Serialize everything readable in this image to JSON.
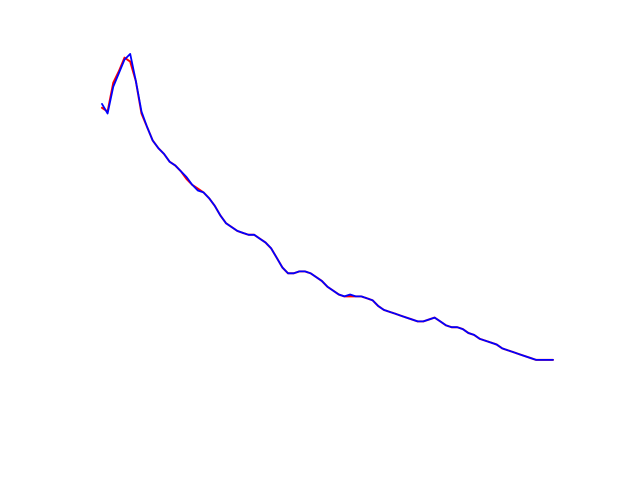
{
  "chart_data": {
    "type": "line",
    "title": "",
    "xlabel": "",
    "ylabel": "",
    "axes_visible": false,
    "grid": false,
    "legend": "none",
    "xlim": [
      0,
      80
    ],
    "ylim": [
      -1.72,
      0.28
    ],
    "x": [
      0,
      1,
      2,
      3,
      4,
      5,
      6,
      7,
      8,
      9,
      10,
      11,
      12,
      13,
      14,
      15,
      16,
      17,
      18,
      19,
      20,
      21,
      22,
      23,
      24,
      25,
      26,
      27,
      28,
      29,
      30,
      31,
      32,
      33,
      34,
      35,
      36,
      37,
      38,
      39,
      40,
      41,
      42,
      43,
      44,
      45,
      46,
      47,
      48,
      49,
      50,
      51,
      52,
      53,
      54,
      55,
      56,
      57,
      58,
      59,
      60,
      61,
      62,
      63,
      64,
      65,
      66,
      67,
      68,
      69,
      70,
      71,
      72,
      73,
      74,
      75,
      76,
      77,
      78,
      79,
      80
    ],
    "series": [
      {
        "color": "#ff0000",
        "values": [
          -0.02,
          -0.04,
          0.11,
          0.17,
          0.24,
          0.22,
          0.12,
          -0.05,
          -0.12,
          -0.19,
          -0.23,
          -0.26,
          -0.3,
          -0.32,
          -0.35,
          -0.39,
          -0.42,
          -0.44,
          -0.46,
          -0.49,
          -0.53,
          -0.58,
          -0.62,
          -0.64,
          -0.66,
          -0.67,
          -0.68,
          -0.68,
          -0.7,
          -0.72,
          -0.75,
          -0.8,
          -0.85,
          -0.88,
          -0.88,
          -0.87,
          -0.87,
          -0.88,
          -0.9,
          -0.92,
          -0.95,
          -0.97,
          -0.99,
          -1.0,
          -1.0,
          -1.0,
          -1.0,
          -1.01,
          -1.02,
          -1.05,
          -1.07,
          -1.08,
          -1.09,
          -1.1,
          -1.11,
          -1.12,
          -1.13,
          -1.13,
          -1.12,
          -1.11,
          -1.13,
          -1.15,
          -1.16,
          -1.16,
          -1.17,
          -1.19,
          -1.2,
          -1.22,
          -1.23,
          -1.24,
          -1.25,
          -1.27,
          -1.28,
          -1.29,
          -1.3,
          -1.31,
          -1.32,
          -1.33,
          -1.33,
          -1.33,
          -1.33
        ]
      },
      {
        "color": "#0000ff",
        "values": [
          0.0,
          -0.05,
          0.09,
          0.16,
          0.23,
          0.26,
          0.12,
          -0.04,
          -0.12,
          -0.19,
          -0.23,
          -0.26,
          -0.3,
          -0.32,
          -0.35,
          -0.38,
          -0.42,
          -0.45,
          -0.46,
          -0.49,
          -0.53,
          -0.58,
          -0.62,
          -0.64,
          -0.66,
          -0.67,
          -0.68,
          -0.68,
          -0.7,
          -0.72,
          -0.75,
          -0.8,
          -0.85,
          -0.88,
          -0.88,
          -0.87,
          -0.87,
          -0.88,
          -0.9,
          -0.92,
          -0.95,
          -0.97,
          -0.99,
          -1.0,
          -0.99,
          -1.0,
          -1.0,
          -1.01,
          -1.02,
          -1.05,
          -1.07,
          -1.08,
          -1.09,
          -1.1,
          -1.11,
          -1.12,
          -1.13,
          -1.13,
          -1.12,
          -1.11,
          -1.13,
          -1.15,
          -1.16,
          -1.16,
          -1.17,
          -1.19,
          -1.2,
          -1.22,
          -1.23,
          -1.24,
          -1.25,
          -1.27,
          -1.28,
          -1.29,
          -1.3,
          -1.31,
          -1.32,
          -1.33,
          -1.33,
          -1.33,
          -1.33
        ]
      }
    ]
  }
}
